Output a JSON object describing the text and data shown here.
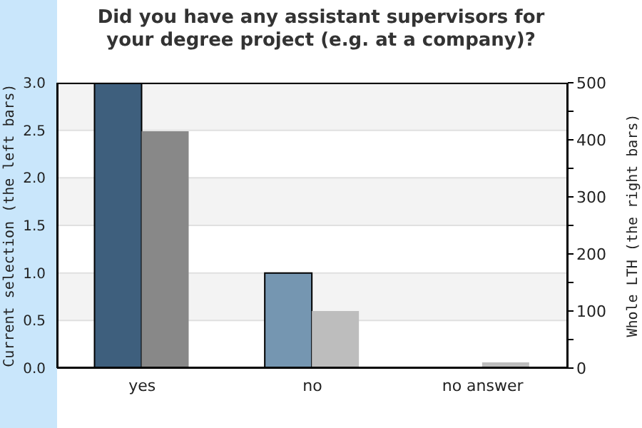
{
  "chart_data": {
    "type": "bar",
    "title": "Did you have any assistant supervisors for your degree project (e.g. at a company)?",
    "ylabel": "Current selection (the left bars)",
    "y2label": "Whole LTH (the right bars)",
    "categories": [
      "yes",
      "no",
      "no answer"
    ],
    "series": [
      {
        "values": [
          3,
          1,
          0
        ],
        "colors": [
          "#3e5f7d",
          "#7596b1",
          "#7596b1"
        ]
      },
      {
        "values": [
          415,
          100,
          10
        ],
        "colors": [
          "#888888",
          "#bdbdbd",
          "#bdbdbd"
        ],
        "axis": "y2"
      }
    ],
    "ylim": [
      0,
      3
    ],
    "yticks": [
      {
        "value": 0,
        "label": "0.0"
      },
      {
        "value": 0.5,
        "label": "0.5"
      },
      {
        "value": 1,
        "label": "1.0"
      },
      {
        "value": 1.5,
        "label": "1.5"
      },
      {
        "value": 2,
        "label": "2.0"
      },
      {
        "value": 2.5,
        "label": "2.5"
      },
      {
        "value": 3,
        "label": "3.0"
      }
    ],
    "y2lim": [
      0,
      500
    ],
    "y2ticks": [
      0,
      {
        "value": 50,
        "label": null
      },
      100,
      {
        "value": 150,
        "label": null
      },
      200,
      {
        "value": 250,
        "label": null
      },
      300,
      {
        "value": 350,
        "label": null
      },
      400,
      {
        "value": 450,
        "label": null
      },
      500
    ],
    "grid": "y",
    "legend": false
  }
}
